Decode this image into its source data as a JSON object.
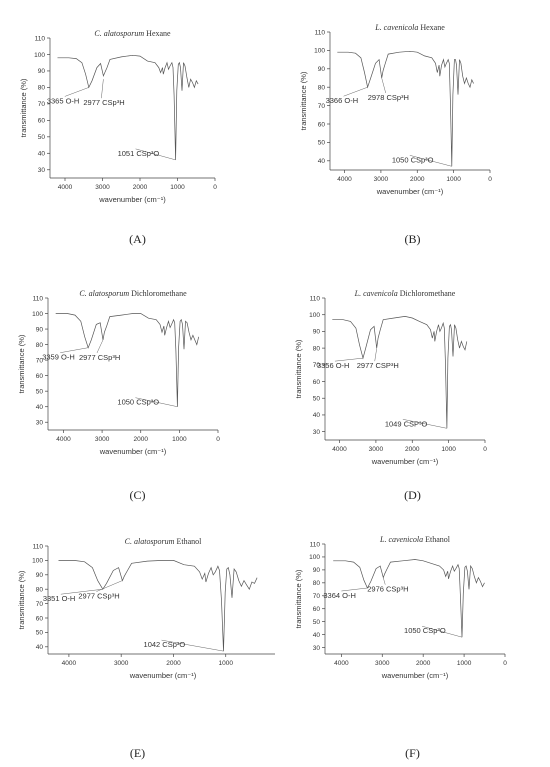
{
  "chart_data": [
    {
      "type": "line",
      "id": "A",
      "panel_label": "(A)",
      "title_species": "C. alatosporum",
      "title_solvent": "Hexane",
      "xlabel": "wavenumber (cm⁻¹)",
      "ylabel": "transmittance (%)",
      "xlim": [
        4400,
        0
      ],
      "ylim": [
        25,
        110
      ],
      "xticks": [
        4000,
        3000,
        2000,
        1000,
        0
      ],
      "yticks": [
        30,
        40,
        50,
        60,
        70,
        80,
        90,
        100,
        110
      ],
      "annotations": [
        {
          "text": "3365 O-H",
          "x": 3365,
          "y": 80
        },
        {
          "text": "2977 CSp³H",
          "x": 2977,
          "y": 85
        },
        {
          "text": "1051 CSp³O",
          "x": 1051,
          "y": 36
        }
      ],
      "x": [
        4200,
        3900,
        3700,
        3550,
        3450,
        3365,
        3280,
        3150,
        3050,
        2977,
        2940,
        2880,
        2800,
        2500,
        2200,
        2000,
        1800,
        1600,
        1500,
        1450,
        1400,
        1380,
        1330,
        1280,
        1240,
        1200,
        1150,
        1120,
        1090,
        1051,
        1020,
        980,
        950,
        920,
        880,
        840,
        800,
        750,
        700,
        650,
        600,
        550,
        500,
        450
      ],
      "y": [
        98,
        98,
        97.5,
        95,
        88,
        80,
        84,
        92,
        94.5,
        87,
        89,
        92,
        97,
        98.5,
        99.5,
        99,
        96,
        95,
        92,
        89,
        92,
        88,
        92,
        95,
        91,
        93,
        95,
        92,
        75,
        36,
        78,
        94,
        95,
        92,
        78,
        95,
        93,
        86,
        80,
        85,
        83,
        80,
        84,
        82
      ]
    },
    {
      "type": "line",
      "id": "B",
      "panel_label": "(B)",
      "title_species": "L. cavenicola",
      "title_solvent": "Hexane",
      "xlabel": "wavenumber (cm⁻¹)",
      "ylabel": "transmittance (%)",
      "xlim": [
        4400,
        0
      ],
      "ylim": [
        35,
        110
      ],
      "xticks": [
        4000,
        3000,
        2000,
        1000,
        0
      ],
      "yticks": [
        40,
        50,
        60,
        70,
        80,
        90,
        100,
        110
      ],
      "annotations": [
        {
          "text": "3366 O-H",
          "x": 3366,
          "y": 80
        },
        {
          "text": "2978 CSp³H",
          "x": 2978,
          "y": 85
        },
        {
          "text": "1050 CSp³O",
          "x": 1050,
          "y": 37
        }
      ],
      "x": [
        4200,
        3900,
        3700,
        3550,
        3450,
        3366,
        3280,
        3150,
        3050,
        2978,
        2940,
        2880,
        2800,
        2500,
        2200,
        2000,
        1800,
        1600,
        1500,
        1450,
        1400,
        1380,
        1330,
        1280,
        1240,
        1200,
        1150,
        1120,
        1090,
        1050,
        1020,
        980,
        950,
        920,
        880,
        840,
        800,
        750,
        700,
        650,
        600,
        550,
        500,
        450
      ],
      "y": [
        99,
        99,
        98.5,
        96,
        88,
        80,
        85,
        93,
        95,
        85,
        89,
        93,
        98,
        99,
        99.5,
        99,
        97,
        96,
        93,
        88,
        92,
        86,
        92,
        95,
        91,
        93,
        95,
        93,
        72,
        37,
        76,
        95,
        95,
        92,
        76,
        95,
        93,
        86,
        82,
        85,
        82,
        80,
        84,
        82
      ]
    },
    {
      "type": "line",
      "id": "C",
      "panel_label": "(C)",
      "title_species": "C. alatosporum",
      "title_solvent": "Dichloromethane",
      "xlabel": "wavenumber (cm⁻¹)",
      "ylabel": "transmittance (%)",
      "xlim": [
        4400,
        0
      ],
      "ylim": [
        25,
        110
      ],
      "xticks": [
        4000,
        3000,
        2000,
        1000,
        0
      ],
      "yticks": [
        30,
        40,
        50,
        60,
        70,
        80,
        90,
        100,
        110
      ],
      "annotations": [
        {
          "text": "3359 O-H",
          "x": 3359,
          "y": 78
        },
        {
          "text": "2977 CSp³H",
          "x": 2977,
          "y": 83
        },
        {
          "text": "1050 CSp³O",
          "x": 1050,
          "y": 40
        }
      ],
      "x": [
        4200,
        3900,
        3700,
        3550,
        3450,
        3359,
        3280,
        3150,
        3050,
        2977,
        2940,
        2880,
        2800,
        2500,
        2200,
        2000,
        1800,
        1600,
        1500,
        1450,
        1400,
        1380,
        1330,
        1280,
        1240,
        1200,
        1150,
        1120,
        1090,
        1050,
        1020,
        980,
        950,
        920,
        880,
        840,
        800,
        750,
        700,
        650,
        600,
        550,
        500
      ],
      "y": [
        100,
        100,
        99,
        95,
        85,
        78,
        83,
        93,
        94,
        83,
        88,
        92,
        98,
        99,
        100,
        100,
        97,
        96,
        93,
        88,
        92,
        86,
        91,
        95,
        91,
        93,
        96,
        94,
        76,
        40,
        78,
        95,
        96,
        93,
        77,
        95,
        94,
        88,
        83,
        86,
        83,
        80,
        85
      ]
    },
    {
      "type": "line",
      "id": "D",
      "panel_label": "(D)",
      "title_species": "L. cavenicola",
      "title_solvent": "Dichloromethane",
      "xlabel": "wavenumber (cm⁻¹)",
      "ylabel": "transmittance (%)",
      "xlim": [
        4400,
        0
      ],
      "ylim": [
        25,
        110
      ],
      "xticks": [
        4000,
        3000,
        2000,
        1000,
        0
      ],
      "yticks": [
        30,
        40,
        50,
        60,
        70,
        80,
        90,
        100,
        110
      ],
      "annotations": [
        {
          "text": "3356 O-H",
          "x": 3356,
          "y": 74
        },
        {
          "text": "2977 CSP³H",
          "x": 2977,
          "y": 80
        },
        {
          "text": "1049 CSP³O",
          "x": 1049,
          "y": 32
        }
      ],
      "x": [
        4200,
        3900,
        3700,
        3550,
        3450,
        3356,
        3280,
        3150,
        3050,
        2977,
        2940,
        2880,
        2800,
        2500,
        2200,
        2000,
        1800,
        1600,
        1500,
        1450,
        1400,
        1380,
        1330,
        1280,
        1240,
        1200,
        1150,
        1120,
        1090,
        1049,
        1020,
        980,
        950,
        920,
        880,
        840,
        800,
        750,
        700,
        650,
        600,
        550,
        500
      ],
      "y": [
        97,
        97,
        96,
        92,
        82,
        74,
        80,
        91,
        93,
        80,
        86,
        91,
        97,
        98,
        99,
        98,
        96,
        94,
        91,
        86,
        90,
        84,
        90,
        94,
        90,
        92,
        95,
        92,
        72,
        32,
        74,
        93,
        94,
        91,
        75,
        94,
        92,
        85,
        80,
        84,
        81,
        79,
        84
      ]
    },
    {
      "type": "line",
      "id": "E",
      "panel_label": "(E)",
      "title_species": "C. alatosporum",
      "title_solvent": "Ethanol",
      "xlabel": "wavenumber (cm⁻¹)",
      "ylabel": "transmittance (%)",
      "xlim": [
        4400,
        0
      ],
      "ylim": [
        35,
        110
      ],
      "xticks": [
        4000,
        3000,
        2000,
        1000,
        0
      ],
      "yticks": [
        40,
        50,
        60,
        70,
        80,
        90,
        100,
        110
      ],
      "annotations": [
        {
          "text": "3351 O-H",
          "x": 3351,
          "y": 80
        },
        {
          "text": "2977 CSp³H",
          "x": 2977,
          "y": 86
        },
        {
          "text": "1042 CSp³O",
          "x": 1042,
          "y": 37
        }
      ],
      "x": [
        4200,
        3900,
        3700,
        3550,
        3450,
        3351,
        3280,
        3150,
        3050,
        2977,
        2940,
        2880,
        2800,
        2500,
        2200,
        2000,
        1800,
        1600,
        1500,
        1450,
        1400,
        1380,
        1330,
        1280,
        1240,
        1200,
        1150,
        1120,
        1080,
        1042,
        1010,
        980,
        950,
        920,
        880,
        840,
        800,
        750,
        700,
        650,
        600,
        550,
        500,
        450,
        400
      ],
      "y": [
        100,
        100,
        99,
        95,
        86,
        80,
        84,
        93,
        95,
        86,
        89,
        93,
        98,
        99.5,
        100,
        100,
        97,
        96,
        92,
        87,
        91,
        85,
        91,
        95,
        90,
        92,
        96,
        93,
        72,
        37,
        78,
        94,
        95,
        90,
        74,
        94,
        92,
        86,
        82,
        86,
        83,
        80,
        85,
        84,
        88
      ]
    },
    {
      "type": "line",
      "id": "F",
      "panel_label": "(F)",
      "title_species": "L. cavenicola",
      "title_solvent": "Ethanol",
      "xlabel": "wavenumber (cm⁻¹)",
      "ylabel": "transmittance (%)",
      "xlim": [
        4400,
        0
      ],
      "ylim": [
        25,
        110
      ],
      "xticks": [
        4000,
        3000,
        2000,
        1000,
        0
      ],
      "yticks": [
        30,
        40,
        50,
        60,
        70,
        80,
        90,
        100,
        110
      ],
      "annotations": [
        {
          "text": "3364 O-H",
          "x": 3364,
          "y": 76
        },
        {
          "text": "2976 CSp³H",
          "x": 2976,
          "y": 84
        },
        {
          "text": "1050 CSp³O",
          "x": 1050,
          "y": 38
        }
      ],
      "x": [
        4200,
        3900,
        3700,
        3550,
        3450,
        3364,
        3280,
        3150,
        3050,
        2976,
        2940,
        2880,
        2800,
        2500,
        2200,
        2000,
        1800,
        1600,
        1500,
        1450,
        1400,
        1380,
        1330,
        1280,
        1240,
        1200,
        1150,
        1120,
        1090,
        1050,
        1020,
        980,
        950,
        920,
        880,
        840,
        800,
        750,
        700,
        650,
        600,
        550,
        500
      ],
      "y": [
        97,
        97,
        96,
        92,
        82,
        76,
        81,
        91,
        93,
        84,
        87,
        91,
        96,
        97,
        98,
        97,
        95,
        93,
        90,
        85,
        89,
        83,
        89,
        93,
        89,
        91,
        94,
        91,
        70,
        38,
        72,
        92,
        93,
        89,
        75,
        93,
        91,
        85,
        80,
        84,
        81,
        77,
        80
      ]
    }
  ]
}
